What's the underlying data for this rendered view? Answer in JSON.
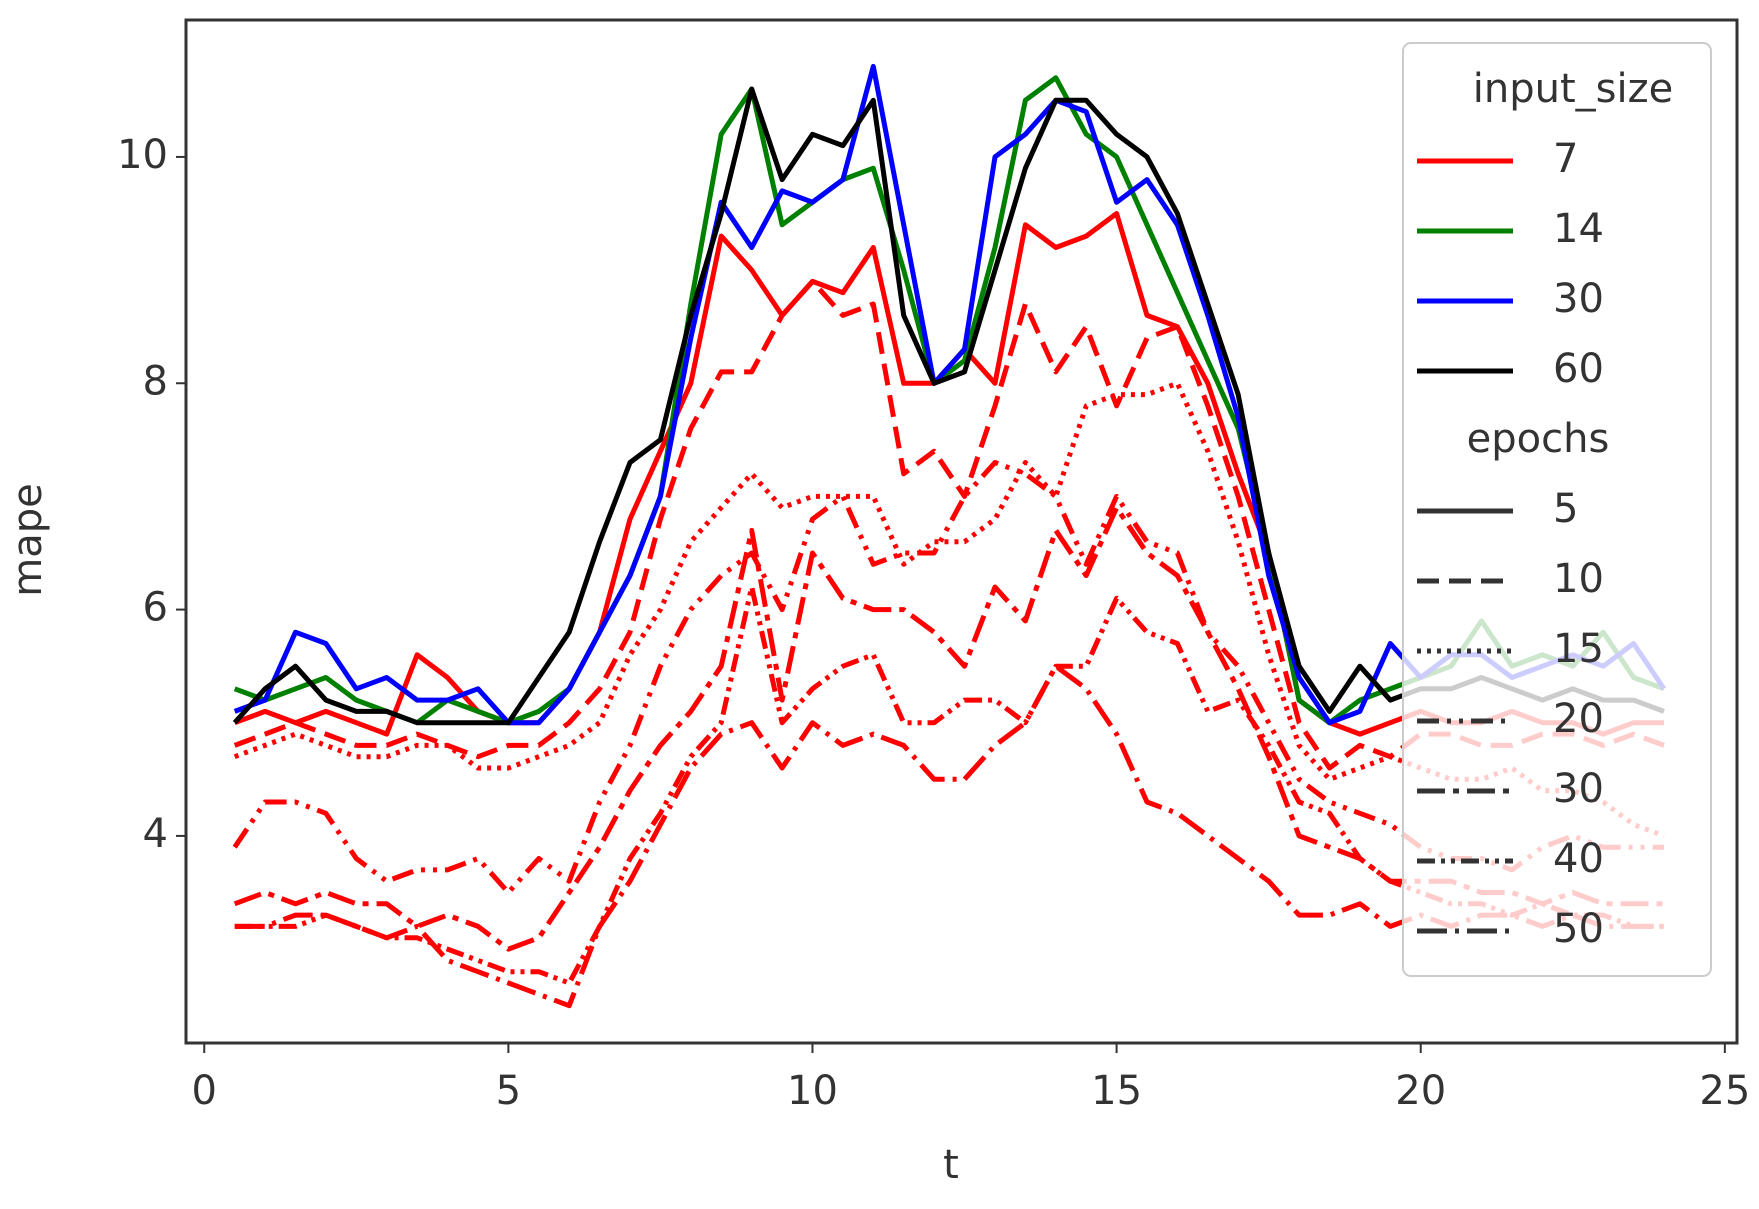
{
  "chart_data": {
    "type": "line",
    "x_label": "t",
    "y_label": "mape",
    "x": [
      0.5,
      1,
      1.5,
      2,
      2.5,
      3,
      3.5,
      4,
      4.5,
      5,
      5.5,
      6,
      6.5,
      7,
      7.5,
      8,
      8.5,
      9,
      9.5,
      10,
      10.5,
      11,
      11.5,
      12,
      12.5,
      13,
      13.5,
      14,
      14.5,
      15,
      15.5,
      16,
      16.5,
      17,
      17.5,
      18,
      18.5,
      19,
      19.5,
      20,
      20.5,
      21,
      21.5,
      22,
      22.5,
      23,
      23.5,
      24
    ],
    "xlim": [
      -0.3,
      25.2
    ],
    "xticks": [
      0,
      5,
      10,
      15,
      20,
      25
    ],
    "ylim": [
      2.17,
      11.21
    ],
    "yticks": [
      4,
      6,
      8,
      10
    ],
    "legend": {
      "hue_title": "input_size",
      "hue": [
        {
          "label": "7",
          "color": "#ff0000"
        },
        {
          "label": "14",
          "color": "#008000"
        },
        {
          "label": "30",
          "color": "#0000ff"
        },
        {
          "label": "60",
          "color": "#000000"
        }
      ],
      "style_title": "epochs",
      "style": [
        {
          "label": "5",
          "dash": "none"
        },
        {
          "label": "10",
          "dash": "22 10"
        },
        {
          "label": "15",
          "dash": "4 6"
        },
        {
          "label": "20",
          "dash": "22 8 4 8 4 8"
        },
        {
          "label": "30",
          "dash": "28 8 6 8"
        },
        {
          "label": "40",
          "dash": "18 6 4 6 4 6"
        },
        {
          "label": "50",
          "dash": "30 8 4 8"
        }
      ]
    },
    "series": [
      {
        "hue": 0,
        "style": 0,
        "values": [
          5.0,
          5.1,
          5.0,
          5.1,
          5.0,
          4.9,
          5.6,
          5.4,
          5.1,
          5.0,
          5.0,
          5.3,
          5.8,
          6.8,
          7.4,
          8.0,
          9.3,
          9.0,
          8.6,
          8.9,
          8.8,
          9.2,
          8.0,
          8.0,
          8.3,
          8.0,
          9.4,
          9.2,
          9.3,
          9.5,
          8.6,
          8.5,
          8.0,
          7.2,
          6.5,
          5.2,
          5.0,
          4.9,
          5.0,
          5.1,
          5.0,
          5.0,
          5.1,
          5.0,
          5.0,
          4.9,
          5.0,
          5.0
        ]
      },
      {
        "hue": 0,
        "style": 1,
        "values": [
          4.8,
          4.9,
          5.0,
          4.9,
          4.8,
          4.8,
          4.9,
          4.8,
          4.7,
          4.8,
          4.8,
          5.0,
          5.3,
          5.8,
          6.8,
          7.6,
          8.1,
          8.1,
          8.6,
          8.9,
          8.6,
          8.7,
          7.2,
          7.4,
          7.0,
          7.8,
          8.7,
          8.1,
          8.5,
          7.8,
          8.4,
          8.5,
          7.8,
          7.0,
          6.0,
          5.0,
          4.6,
          4.8,
          4.7,
          4.9,
          4.9,
          4.8,
          4.8,
          4.9,
          4.9,
          4.8,
          4.9,
          4.8
        ]
      },
      {
        "hue": 0,
        "style": 2,
        "values": [
          4.7,
          4.8,
          4.9,
          4.8,
          4.7,
          4.7,
          4.8,
          4.8,
          4.6,
          4.6,
          4.7,
          4.8,
          5.0,
          5.6,
          6.0,
          6.6,
          6.9,
          7.2,
          6.9,
          7.0,
          7.0,
          7.0,
          6.4,
          6.6,
          6.6,
          6.8,
          7.3,
          7.0,
          7.8,
          7.9,
          7.9,
          8.0,
          7.4,
          6.6,
          5.6,
          4.8,
          4.5,
          4.6,
          4.7,
          4.6,
          4.5,
          4.5,
          4.6,
          4.4,
          4.4,
          4.3,
          4.1,
          4.0
        ]
      },
      {
        "hue": 0,
        "style": 3,
        "values": [
          3.9,
          4.3,
          4.3,
          4.2,
          3.8,
          3.6,
          3.7,
          3.7,
          3.8,
          3.5,
          3.8,
          3.6,
          4.3,
          4.8,
          5.5,
          6.0,
          6.3,
          6.5,
          6.0,
          6.8,
          7.0,
          6.4,
          6.5,
          6.5,
          7.0,
          7.3,
          7.2,
          7.0,
          6.4,
          7.0,
          6.6,
          6.5,
          5.8,
          5.5,
          5.0,
          4.5,
          4.3,
          4.2,
          4.1,
          3.9,
          3.8,
          3.8,
          3.7,
          3.9,
          4.0,
          3.9,
          3.9,
          3.9
        ]
      },
      {
        "hue": 0,
        "style": 4,
        "values": [
          3.4,
          3.5,
          3.4,
          3.5,
          3.4,
          3.4,
          3.2,
          3.3,
          3.2,
          3.0,
          3.1,
          3.5,
          3.9,
          4.4,
          4.8,
          5.1,
          5.5,
          6.7,
          5.2,
          6.5,
          6.1,
          6.0,
          6.0,
          5.8,
          5.5,
          6.2,
          5.9,
          6.7,
          6.3,
          6.9,
          6.5,
          6.3,
          5.8,
          5.3,
          4.7,
          4.0,
          3.9,
          3.8,
          3.6,
          3.6,
          3.6,
          3.5,
          3.5,
          3.4,
          3.5,
          3.4,
          3.4,
          3.4
        ]
      },
      {
        "hue": 0,
        "style": 5,
        "values": [
          3.2,
          3.2,
          3.2,
          3.3,
          3.2,
          3.1,
          3.1,
          3.0,
          2.9,
          2.8,
          2.8,
          2.7,
          3.2,
          3.8,
          4.2,
          4.7,
          5.0,
          6.2,
          5.0,
          5.3,
          5.5,
          5.6,
          5.0,
          5.0,
          5.2,
          5.2,
          5.0,
          5.5,
          5.5,
          6.1,
          5.8,
          5.7,
          5.1,
          5.2,
          4.8,
          4.3,
          4.2,
          3.8,
          3.6,
          3.5,
          3.4,
          3.4,
          3.3,
          3.4,
          3.3,
          3.3,
          3.2,
          3.2
        ]
      },
      {
        "hue": 0,
        "style": 6,
        "values": [
          3.2,
          3.2,
          3.3,
          3.3,
          3.2,
          3.1,
          3.2,
          2.9,
          2.8,
          2.7,
          2.6,
          2.5,
          3.2,
          3.6,
          4.1,
          4.6,
          4.9,
          5.0,
          4.6,
          5.0,
          4.8,
          4.9,
          4.8,
          4.5,
          4.5,
          4.8,
          5.0,
          5.5,
          5.3,
          4.9,
          4.3,
          4.2,
          4.0,
          3.8,
          3.6,
          3.3,
          3.3,
          3.4,
          3.2,
          3.3,
          3.2,
          3.3,
          3.3,
          3.2,
          3.3,
          3.2,
          3.2,
          3.2
        ]
      },
      {
        "hue": 1,
        "style": 0,
        "values": [
          5.3,
          5.2,
          5.3,
          5.4,
          5.2,
          5.1,
          5.0,
          5.2,
          5.1,
          5.0,
          5.1,
          5.3,
          5.8,
          6.3,
          7.0,
          8.7,
          10.2,
          10.6,
          9.4,
          9.6,
          9.8,
          9.9,
          9.0,
          8.0,
          8.2,
          9.2,
          10.5,
          10.7,
          10.2,
          10.0,
          9.4,
          8.8,
          8.2,
          7.6,
          6.5,
          5.2,
          5.0,
          5.2,
          5.3,
          5.4,
          5.5,
          5.9,
          5.5,
          5.6,
          5.5,
          5.8,
          5.4,
          5.3
        ]
      },
      {
        "hue": 2,
        "style": 0,
        "values": [
          5.1,
          5.2,
          5.8,
          5.7,
          5.3,
          5.4,
          5.2,
          5.2,
          5.3,
          5.0,
          5.0,
          5.3,
          5.8,
          6.3,
          7.0,
          8.4,
          9.6,
          9.2,
          9.7,
          9.6,
          9.8,
          10.8,
          9.4,
          8.0,
          8.3,
          10.0,
          10.2,
          10.5,
          10.4,
          9.6,
          9.8,
          9.4,
          8.6,
          7.7,
          6.3,
          5.4,
          5.0,
          5.1,
          5.7,
          5.4,
          5.6,
          5.6,
          5.4,
          5.5,
          5.6,
          5.5,
          5.7,
          5.3
        ]
      },
      {
        "hue": 3,
        "style": 0,
        "values": [
          5.0,
          5.3,
          5.5,
          5.2,
          5.1,
          5.1,
          5.0,
          5.0,
          5.0,
          5.0,
          5.4,
          5.8,
          6.6,
          7.3,
          7.5,
          8.6,
          9.5,
          10.6,
          9.8,
          10.2,
          10.1,
          10.5,
          8.6,
          8.0,
          8.1,
          9.0,
          9.9,
          10.5,
          10.5,
          10.2,
          10.0,
          9.5,
          8.7,
          7.9,
          6.5,
          5.5,
          5.1,
          5.5,
          5.2,
          5.3,
          5.3,
          5.4,
          5.3,
          5.2,
          5.3,
          5.2,
          5.2,
          5.1
        ]
      }
    ]
  }
}
